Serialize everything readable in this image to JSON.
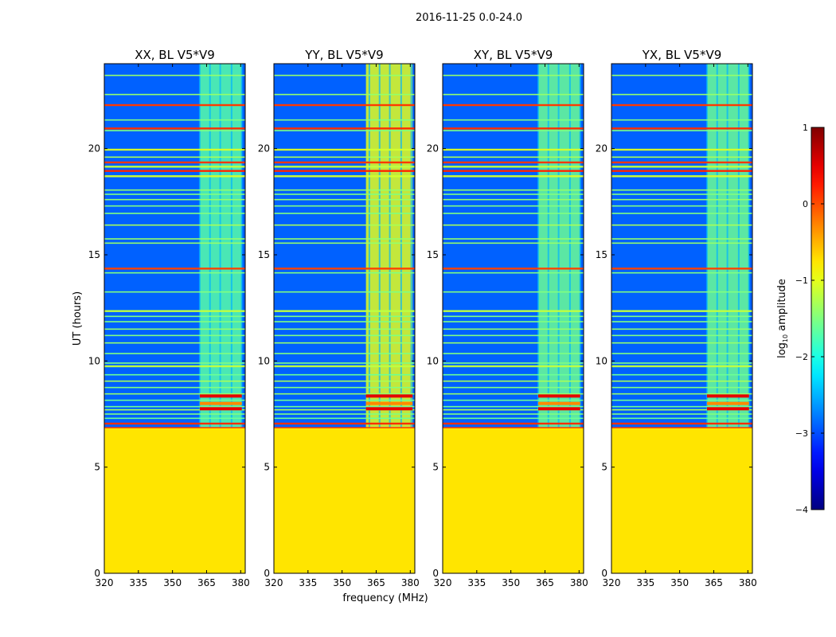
{
  "chart_data": {
    "type": "heatmap",
    "suptitle": "2016-11-25 0.0-24.0",
    "xlabel": "frequency (MHz)",
    "ylabel": "UT (hours)",
    "xlim": [
      320,
      382
    ],
    "ylim": [
      0,
      24
    ],
    "xticks": [
      320,
      335,
      350,
      365,
      380
    ],
    "yticks": [
      0,
      5,
      10,
      15,
      20
    ],
    "colorbar": {
      "label": "log10 amplitude",
      "label_base": "log",
      "label_sub": "10",
      "label_rest": " amplitude",
      "range": [
        -4,
        1
      ],
      "ticks": [
        -4,
        -3,
        -2,
        -1,
        0,
        1
      ],
      "colormap": "jet",
      "colors": [
        "#00007f",
        "#0000ff",
        "#007fff",
        "#00ffff",
        "#7fff7f",
        "#ffff00",
        "#ff7f00",
        "#ff0000",
        "#7f0000"
      ]
    },
    "background_value": -2.9,
    "masked_value": -0.75,
    "masked_below_hours": 6.85,
    "rfi_band": {
      "value": -1.7,
      "edges": [
        362,
        366.5,
        371,
        376,
        380.5
      ]
    },
    "rfi_band_wide_yy": [
      360.5,
      381
    ],
    "time_lines": [
      {
        "t": 7.05,
        "v": 0.15
      },
      {
        "t": 7.3,
        "v": -1.6
      },
      {
        "t": 7.5,
        "v": -1.5
      },
      {
        "t": 7.7,
        "v": -1.3
      },
      {
        "t": 7.85,
        "v": -1.6
      },
      {
        "t": 8.15,
        "v": -1.6
      },
      {
        "t": 8.45,
        "v": -1.4
      },
      {
        "t": 8.75,
        "v": -1.5
      },
      {
        "t": 9.05,
        "v": -1.3
      },
      {
        "t": 9.35,
        "v": -1.6
      },
      {
        "t": 9.75,
        "v": -1.2
      },
      {
        "t": 9.9,
        "v": -1.5
      },
      {
        "t": 10.35,
        "v": -1.5
      },
      {
        "t": 10.85,
        "v": -1.4
      },
      {
        "t": 11.2,
        "v": -1.5
      },
      {
        "t": 11.5,
        "v": -1.4
      },
      {
        "t": 11.85,
        "v": -1.5
      },
      {
        "t": 12.1,
        "v": -1.5
      },
      {
        "t": 12.35,
        "v": -1.2
      },
      {
        "t": 13.25,
        "v": -1.5
      },
      {
        "t": 14.15,
        "v": -1.5
      },
      {
        "t": 14.35,
        "v": 0.05
      },
      {
        "t": 15.55,
        "v": -1.4
      },
      {
        "t": 15.75,
        "v": -1.4
      },
      {
        "t": 16.4,
        "v": -1.3
      },
      {
        "t": 16.95,
        "v": -1.5
      },
      {
        "t": 17.3,
        "v": -1.5
      },
      {
        "t": 17.6,
        "v": -1.4
      },
      {
        "t": 17.85,
        "v": -1.5
      },
      {
        "t": 18.05,
        "v": -1.4
      },
      {
        "t": 18.7,
        "v": -1.1
      },
      {
        "t": 18.95,
        "v": 0.2
      },
      {
        "t": 19.15,
        "v": -1.2
      },
      {
        "t": 19.35,
        "v": 0.1
      },
      {
        "t": 19.6,
        "v": -1.3
      },
      {
        "t": 19.95,
        "v": -1.1
      },
      {
        "t": 20.85,
        "v": -1.5
      },
      {
        "t": 20.95,
        "v": 0.15
      },
      {
        "t": 21.35,
        "v": -1.5
      },
      {
        "t": 22.05,
        "v": 0.1
      },
      {
        "t": 22.55,
        "v": -1.4
      },
      {
        "t": 23.45,
        "v": -1.4
      }
    ],
    "panels": [
      {
        "title": "XX, BL V5*V9",
        "band_lo": 362,
        "band_hi": 380.5,
        "band_strength": -1.7,
        "hot_rows": [
          7.75,
          8.35
        ]
      },
      {
        "title": "YY, BL V5*V9",
        "band_lo": 360.5,
        "band_hi": 381,
        "band_strength": -1.0,
        "hot_rows": [
          7.75,
          8.35
        ]
      },
      {
        "title": "XY, BL V5*V9",
        "band_lo": 362,
        "band_hi": 380.5,
        "band_strength": -1.6,
        "hot_rows": [
          7.75,
          8.35
        ]
      },
      {
        "title": "YX, BL V5*V9",
        "band_lo": 362,
        "band_hi": 380.5,
        "band_strength": -1.6,
        "hot_rows": [
          7.75,
          8.35
        ]
      }
    ]
  }
}
